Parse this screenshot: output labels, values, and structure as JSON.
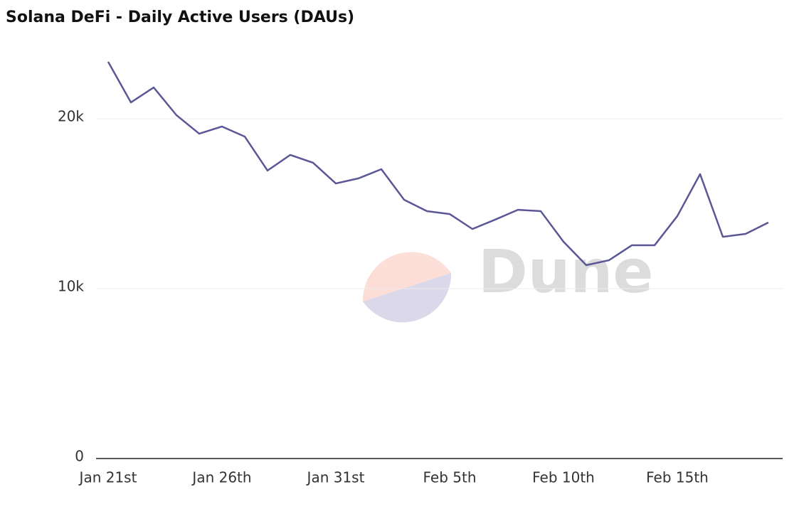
{
  "chart_data": {
    "type": "line",
    "title": "Solana DeFi - Daily Active Users (DAUs)",
    "watermark": "Dune",
    "categories": [
      "Jan 21st",
      null,
      null,
      null,
      null,
      "Jan 26th",
      null,
      null,
      null,
      null,
      "Jan 31st",
      null,
      null,
      null,
      null,
      "Feb 5th",
      null,
      null,
      null,
      null,
      "Feb 10th",
      null,
      null,
      null,
      null,
      "Feb 15th",
      null,
      null,
      null,
      null
    ],
    "series": [
      {
        "name": "DAUs",
        "color": "#5b5796",
        "values": [
          23350,
          20960,
          21840,
          20210,
          19120,
          19540,
          18950,
          16950,
          17870,
          17410,
          16190,
          16490,
          17030,
          15230,
          14560,
          14390,
          13510,
          14060,
          14640,
          14560,
          12760,
          11380,
          11670,
          12550,
          12550,
          14270,
          16740,
          13050,
          13220,
          13890
        ]
      }
    ],
    "ylim": [
      0,
      24000
    ],
    "yticks": [
      0,
      {
        "value": 10000,
        "label": "10k"
      },
      {
        "value": 20000,
        "label": "20k"
      }
    ],
    "grid": true
  }
}
